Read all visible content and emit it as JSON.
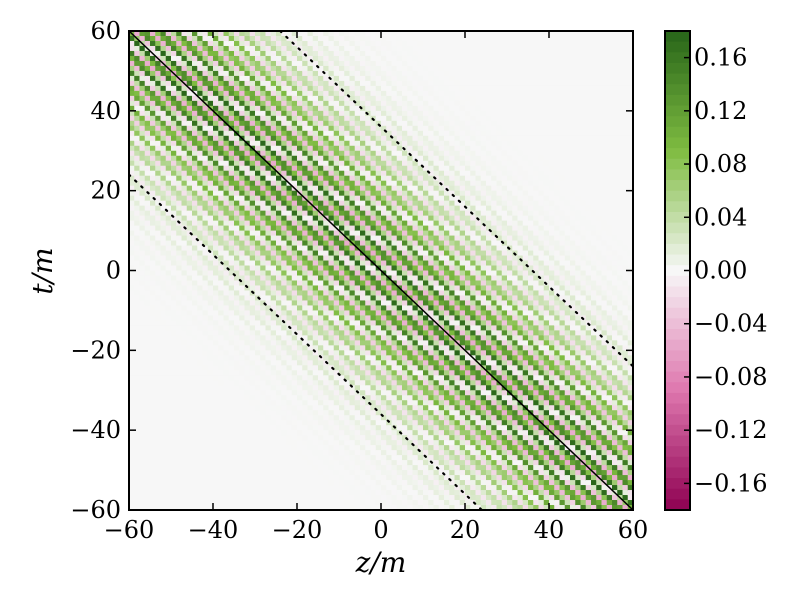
{
  "chart_data": {
    "type": "heatmap",
    "title": "",
    "xlabel": "z/m",
    "ylabel": "t/m",
    "xlim": [
      -60,
      60
    ],
    "ylim": [
      -60,
      60
    ],
    "xticks": [
      -60,
      -40,
      -20,
      0,
      20,
      40,
      60
    ],
    "yticks": [
      -60,
      -40,
      -20,
      0,
      20,
      40,
      60
    ],
    "xtick_labels": [
      "−60",
      "−40",
      "−20",
      "0",
      "20",
      "40",
      "60"
    ],
    "ytick_labels": [
      "−60",
      "−40",
      "−20",
      "0",
      "20",
      "40",
      "60"
    ],
    "colorbar": {
      "range": [
        -0.18,
        0.18
      ],
      "ticks": [
        0.16,
        0.12,
        0.08,
        0.04,
        0.0,
        -0.04,
        -0.08,
        -0.12,
        -0.16
      ],
      "tick_labels": [
        "0.16",
        "0.12",
        "0.08",
        "0.04",
        "0.00",
        "−0.04",
        "−0.08",
        "−0.12",
        "−0.16"
      ],
      "colormap": "PiYG",
      "colors": {
        "min": "#8e0152",
        "low": "#de77ae",
        "zero": "#f7f7f7",
        "high": "#7fbc41",
        "max": "#276419"
      }
    },
    "field": {
      "description_of_pattern": "oscillating stripes along t = -z direction, envelope centered on solid line",
      "stripe_direction": "t + z = const",
      "amplitude": 0.18,
      "envelope_width": 26,
      "stripe_period": 4.2
    },
    "lines": [
      {
        "name": "",
        "style": "solid",
        "color": "#000000",
        "points": [
          [
            -60,
            60
          ],
          [
            60,
            -60
          ]
        ]
      },
      {
        "name": "",
        "style": "dotted",
        "color": "#000000",
        "points": [
          [
            -24,
            60
          ],
          [
            60,
            -24
          ]
        ]
      },
      {
        "name": "",
        "style": "dotted",
        "color": "#000000",
        "points": [
          [
            -60,
            24
          ],
          [
            24,
            -60
          ]
        ]
      }
    ]
  }
}
